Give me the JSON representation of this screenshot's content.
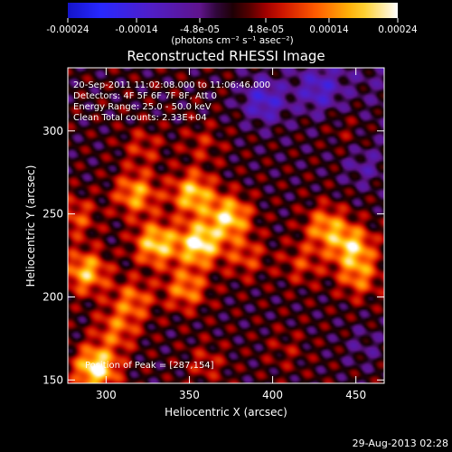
{
  "chart_data": {
    "type": "heatmap",
    "title": "Reconstructed RHESSI Image",
    "xlabel": "Heliocentric X (arcsec)",
    "ylabel": "Heliocentric Y (arcsec)",
    "xlim": [
      277,
      467
    ],
    "ylim": [
      148,
      338
    ],
    "x_ticks": [
      300,
      350,
      400,
      450
    ],
    "y_ticks": [
      150,
      200,
      250,
      300
    ],
    "colorbar": {
      "range": [
        -0.00024,
        0.00024
      ],
      "ticks": [
        -0.00024,
        -0.00014,
        -4.8e-05,
        4.8e-05,
        0.00014,
        0.00024
      ],
      "tick_labels": [
        "-0.00024",
        "-0.00014",
        "-4.8e-05",
        "4.8e-05",
        "0.00014",
        "0.00024"
      ],
      "unit_label": "(photons cm⁻² s⁻¹ asec⁻²)"
    },
    "annotations": [
      "20-Sep-2011 11:02:08.000 to 11:06:46.000",
      "Detectors: 4F 5F 6F 7F 8F, Att 0",
      "Energy Range: 25.0 - 50.0 keV",
      "Clean     Total counts: 2.33E+04"
    ],
    "peak_label": "Position of Peak = [287,154]",
    "peak_position": [
      287,
      154
    ],
    "sources": [
      {
        "x": 288,
        "y": 215,
        "value": 0.00018
      },
      {
        "x": 294,
        "y": 157,
        "value": 0.00024
      },
      {
        "x": 282,
        "y": 248,
        "value": 0.0001
      },
      {
        "x": 318,
        "y": 262,
        "value": 0.00016
      },
      {
        "x": 330,
        "y": 232,
        "value": 0.0002
      },
      {
        "x": 352,
        "y": 262,
        "value": 0.00019
      },
      {
        "x": 356,
        "y": 232,
        "value": 0.00023
      },
      {
        "x": 374,
        "y": 248,
        "value": 0.0002
      },
      {
        "x": 348,
        "y": 205,
        "value": 0.00014
      },
      {
        "x": 316,
        "y": 198,
        "value": 0.00012
      },
      {
        "x": 384,
        "y": 224,
        "value": 9e-05
      },
      {
        "x": 432,
        "y": 242,
        "value": 0.00015
      },
      {
        "x": 448,
        "y": 230,
        "value": 0.00018
      },
      {
        "x": 452,
        "y": 212,
        "value": 0.00012
      },
      {
        "x": 418,
        "y": 220,
        "value": 8e-05
      },
      {
        "x": 322,
        "y": 290,
        "value": 7e-05
      },
      {
        "x": 358,
        "y": 292,
        "value": 6e-05
      },
      {
        "x": 306,
        "y": 180,
        "value": 0.00011
      },
      {
        "x": 360,
        "y": 160,
        "value": 6e-05
      },
      {
        "x": 408,
        "y": 168,
        "value": 4e-05
      },
      {
        "x": 444,
        "y": 300,
        "value": 4e-05
      },
      {
        "x": 395,
        "y": 318,
        "value": -0.00012
      },
      {
        "x": 428,
        "y": 325,
        "value": -0.0001
      },
      {
        "x": 455,
        "y": 278,
        "value": -6e-05
      },
      {
        "x": 455,
        "y": 170,
        "value": -4e-05
      }
    ],
    "grid": false,
    "legend": "none"
  },
  "footer": {
    "date": "29-Aug-2013 02:28"
  }
}
